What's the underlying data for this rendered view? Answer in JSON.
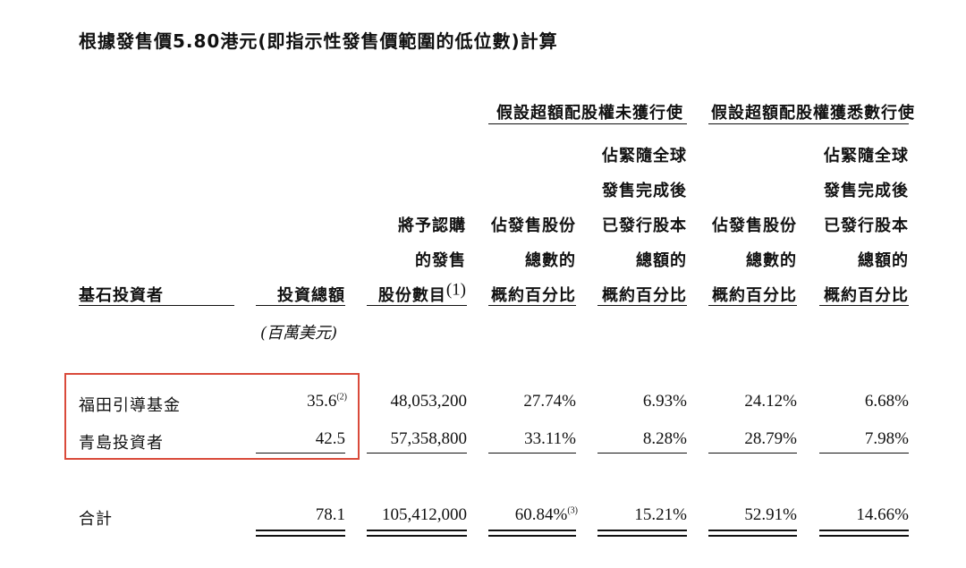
{
  "title": "根據發售價5.80港元(即指示性發售價範圍的低位數)計算",
  "group_headers": {
    "not_exercised": "假設超額配股權未獲行使",
    "fully_exercised": "假設超額配股權獲悉數行使"
  },
  "columns": {
    "investor": "基石投資者",
    "total_investment": "投資總額",
    "shares_line1": "將予認購",
    "shares_line2": "的發售",
    "shares_line3": "股份數目",
    "shares_note": "(1)",
    "pct_offer_line1": "佔發售股份",
    "pct_offer_line2": "總數的",
    "pct_offer_line3": "概約百分比",
    "pct_issued_line1": "佔緊隨全球",
    "pct_issued_line2": "發售完成後",
    "pct_issued_line3": "已發行股本",
    "pct_issued_line4": "總額的",
    "pct_issued_line5": "概約百分比"
  },
  "unit": "(百萬美元)",
  "rows": [
    {
      "investor": "福田引導基金",
      "total_investment": "35.6",
      "investment_note": "(2)",
      "shares": "48,053,200",
      "pct_offer_a": "27.74%",
      "pct_issued_a": "6.93%",
      "pct_offer_b": "24.12%",
      "pct_issued_b": "6.68%"
    },
    {
      "investor": "青島投資者",
      "total_investment": "42.5",
      "investment_note": "",
      "shares": "57,358,800",
      "pct_offer_a": "33.11%",
      "pct_issued_a": "8.28%",
      "pct_offer_b": "28.79%",
      "pct_issued_b": "7.98%"
    }
  ],
  "total": {
    "label": "合計",
    "total_investment": "78.1",
    "shares": "105,412,000",
    "pct_offer_a": "60.84%",
    "pct_offer_a_note": "(3)",
    "pct_issued_a": "15.21%",
    "pct_offer_b": "52.91%",
    "pct_issued_b": "14.66%"
  },
  "colors": {
    "highlight_box": "#d94a3a",
    "text": "#111111"
  }
}
